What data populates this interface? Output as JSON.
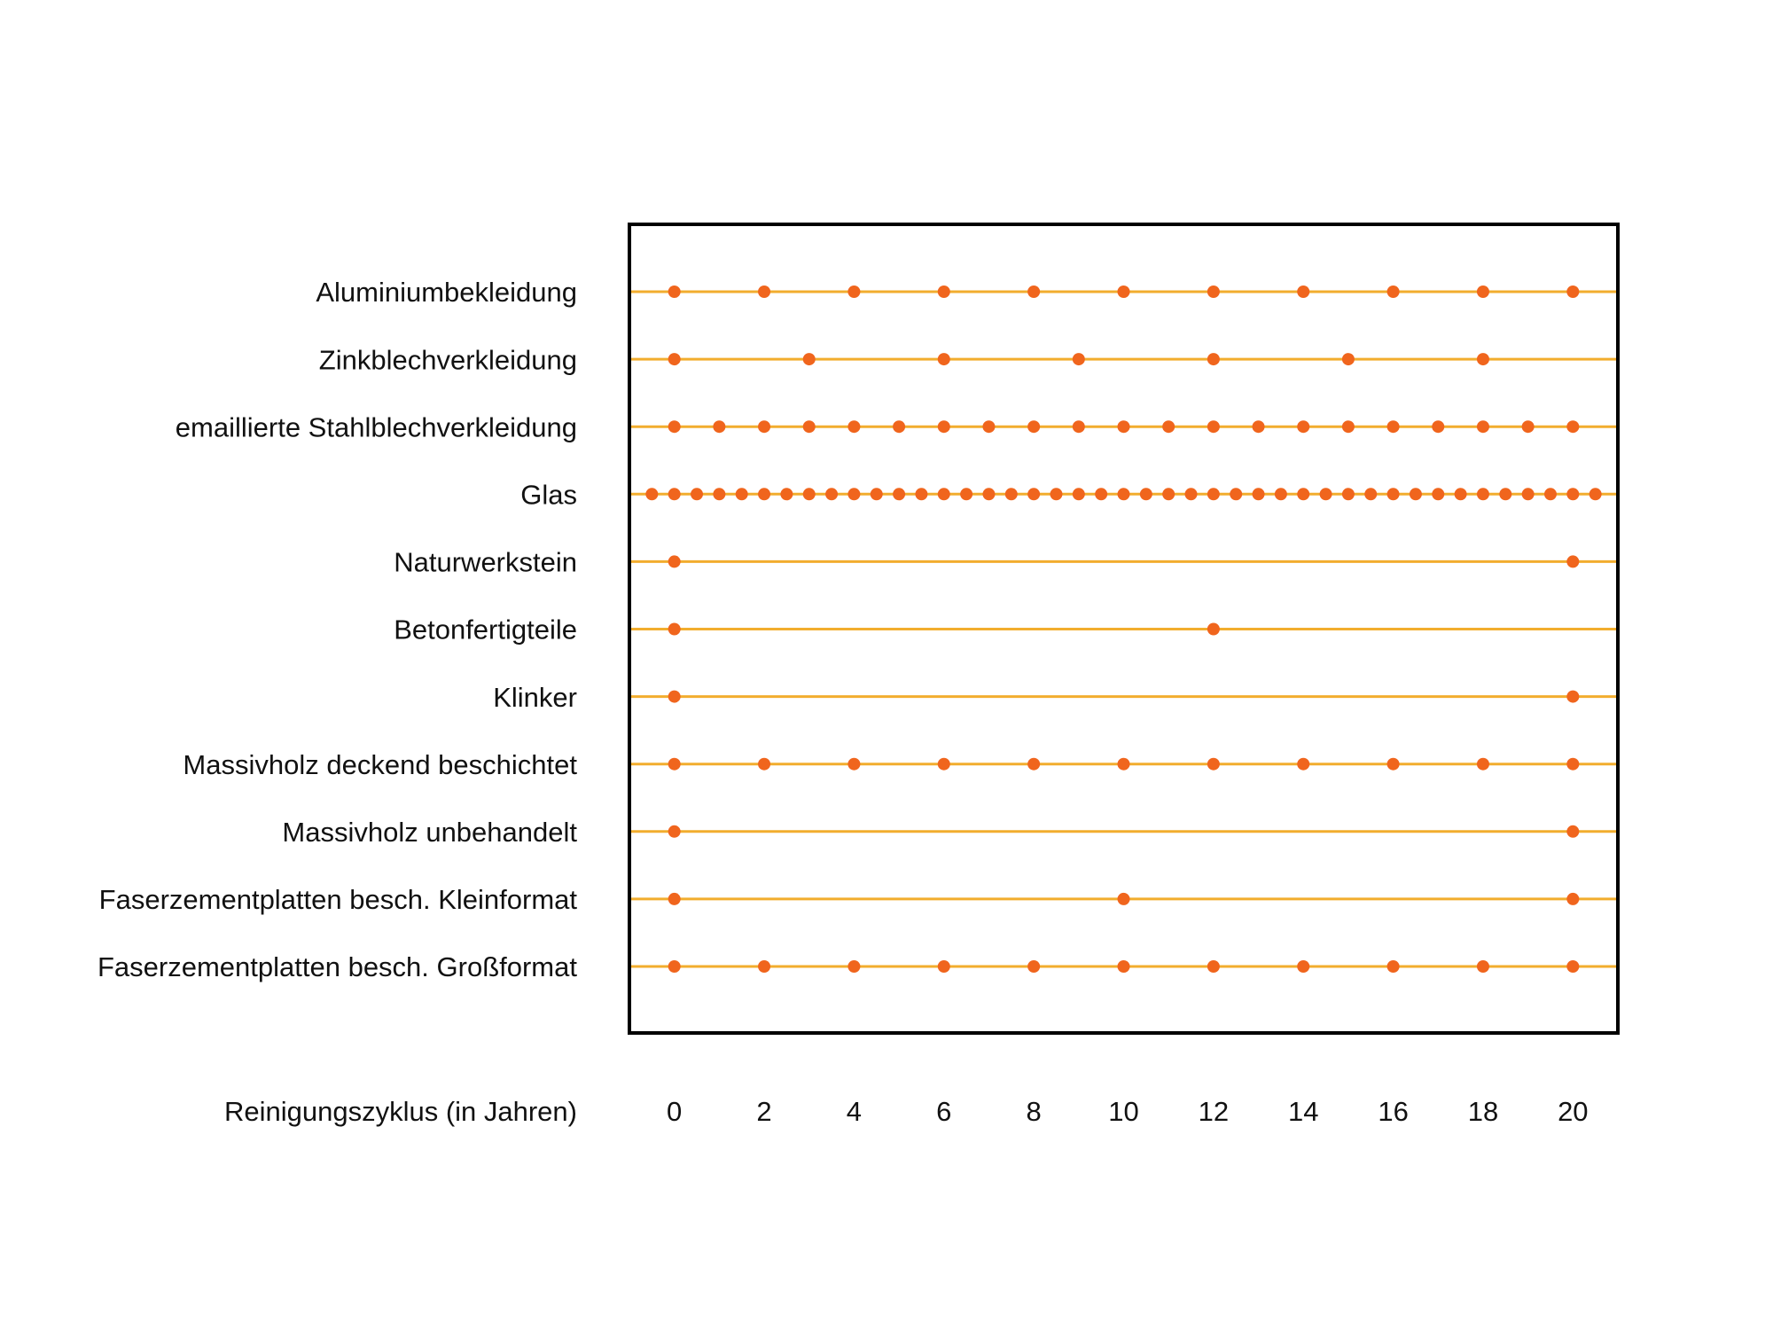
{
  "chart_data": {
    "type": "dot",
    "x_label": "Reinigungszyklus (in Jahren)",
    "xlim": [
      -1,
      21
    ],
    "xticks": [
      0,
      2,
      4,
      6,
      8,
      10,
      12,
      14,
      16,
      18,
      20
    ],
    "dot_color": "#f0651d",
    "line_color": "#f2ad2e",
    "rows": [
      {
        "name": "Aluminiumbekleidung",
        "x": [
          0,
          2,
          4,
          6,
          8,
          10,
          12,
          14,
          16,
          18,
          20
        ]
      },
      {
        "name": "Zinkblechverkleidung",
        "x": [
          0,
          3,
          6,
          9,
          12,
          15,
          18
        ]
      },
      {
        "name": "emaillierte Stahlblechverkleidung",
        "x": [
          0,
          1,
          2,
          3,
          4,
          5,
          6,
          7,
          8,
          9,
          10,
          11,
          12,
          13,
          14,
          15,
          16,
          17,
          18,
          19,
          20
        ]
      },
      {
        "name": "Glas",
        "x": [
          -0.5,
          0,
          0.5,
          1,
          1.5,
          2,
          2.5,
          3,
          3.5,
          4,
          4.5,
          5,
          5.5,
          6,
          6.5,
          7,
          7.5,
          8,
          8.5,
          9,
          9.5,
          10,
          10.5,
          11,
          11.5,
          12,
          12.5,
          13,
          13.5,
          14,
          14.5,
          15,
          15.5,
          16,
          16.5,
          17,
          17.5,
          18,
          18.5,
          19,
          19.5,
          20,
          20.5
        ]
      },
      {
        "name": "Naturwerkstein",
        "x": [
          0,
          20
        ]
      },
      {
        "name": "Betonfertigteile",
        "x": [
          0,
          12
        ]
      },
      {
        "name": "Klinker",
        "x": [
          0,
          20
        ]
      },
      {
        "name": "Massivholz deckend beschichtet",
        "x": [
          0,
          2,
          4,
          6,
          8,
          10,
          12,
          14,
          16,
          18,
          20
        ]
      },
      {
        "name": "Massivholz unbehandelt",
        "x": [
          0,
          20
        ]
      },
      {
        "name": "Faserzementplatten besch. Kleinformat",
        "x": [
          0,
          10,
          20
        ]
      },
      {
        "name": "Faserzementplatten besch. Großformat",
        "x": [
          0,
          2,
          4,
          6,
          8,
          10,
          12,
          14,
          16,
          18,
          20
        ]
      }
    ]
  }
}
